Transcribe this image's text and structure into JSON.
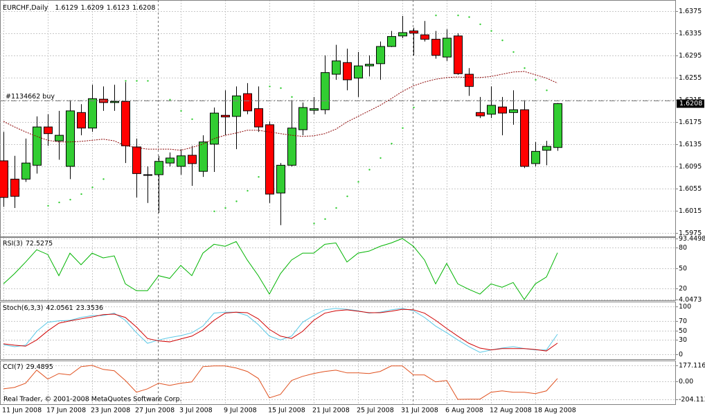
{
  "chart_data": [
    {
      "type": "candlestick",
      "title": "EURCHF,Daily",
      "categories": [
        "11 Jun 2008",
        null,
        null,
        null,
        "17 Jun 2008",
        null,
        null,
        null,
        "23 Jun 2008",
        null,
        null,
        null,
        "27 Jun 2008",
        null,
        null,
        null,
        "3 Jul 2008",
        null,
        null,
        null,
        "9 Jul 2008",
        null,
        null,
        null,
        "15 Jul 2008",
        null,
        null,
        null,
        "21 Jul 2008",
        null,
        null,
        null,
        "25 Jul 2008",
        null,
        null,
        null,
        "31 Jul 2008",
        null,
        null,
        null,
        "6 Aug 2008",
        null,
        null,
        null,
        "12 Aug 2008",
        null,
        null,
        null,
        "18 Aug 2008",
        null,
        null
      ],
      "open": [
        1.6105,
        1.6072,
        1.6072,
        1.6097,
        1.6166,
        1.6141,
        1.6095,
        1.6192,
        1.6164,
        1.6216,
        1.621,
        1.6212,
        1.613,
        1.608,
        1.608,
        1.6101,
        1.6095,
        1.6115,
        1.6086,
        1.6135,
        1.6187,
        1.6185,
        1.6226,
        1.6199,
        1.617,
        1.6047,
        1.6097,
        1.6161,
        1.6196,
        1.6197,
        1.6261,
        1.6282,
        1.6254,
        1.6276,
        1.628,
        1.6311,
        1.633,
        1.6339,
        1.6332,
        1.6324,
        1.6292,
        1.633,
        1.6261,
        1.6192,
        1.6189,
        1.6202,
        1.6192,
        1.6197,
        1.61,
        1.6124,
        1.6129
      ],
      "high": [
        1.6157,
        1.6114,
        1.6145,
        1.6185,
        1.6189,
        1.6195,
        1.6214,
        1.6207,
        1.6242,
        1.6239,
        1.6242,
        1.6247,
        1.6145,
        1.6095,
        1.6114,
        1.612,
        1.6126,
        1.6132,
        1.6151,
        1.6201,
        1.6232,
        1.6239,
        1.6245,
        1.6239,
        1.6176,
        1.6101,
        1.6214,
        1.621,
        1.622,
        1.6295,
        1.6314,
        1.6307,
        1.6301,
        1.6295,
        1.632,
        1.6339,
        1.6366,
        1.6345,
        1.6357,
        1.6339,
        1.6342,
        1.6335,
        1.6272,
        1.622,
        1.6239,
        1.622,
        1.6232,
        1.6214,
        1.6139,
        1.6141,
        1.6209
      ],
      "low": [
        1.6022,
        1.602,
        1.6067,
        1.6082,
        1.6132,
        1.6107,
        1.6072,
        1.6151,
        1.6157,
        1.6195,
        1.6195,
        1.6101,
        1.6039,
        1.6029,
        1.6011,
        1.6095,
        1.608,
        1.606,
        1.6076,
        1.6085,
        1.6151,
        1.6126,
        1.6189,
        1.6157,
        1.6029,
        1.5989,
        1.6095,
        1.6151,
        1.6189,
        1.6189,
        1.6251,
        1.6232,
        1.622,
        1.6257,
        1.6251,
        1.631,
        1.6326,
        1.6295,
        1.632,
        1.6289,
        1.6285,
        1.626,
        1.6222,
        1.6182,
        1.6182,
        1.6151,
        1.617,
        1.6092,
        1.6095,
        1.6097,
        1.6123
      ],
      "close": [
        1.6039,
        1.6041,
        1.6101,
        1.6166,
        1.6154,
        1.6151,
        1.6195,
        1.6164,
        1.6217,
        1.621,
        1.6212,
        1.6132,
        1.6082,
        1.608,
        1.6104,
        1.611,
        1.6114,
        1.61,
        1.6139,
        1.6191,
        1.6184,
        1.6222,
        1.6195,
        1.6166,
        1.6045,
        1.6097,
        1.6164,
        1.6201,
        1.6199,
        1.6264,
        1.6285,
        1.6251,
        1.6276,
        1.6279,
        1.6311,
        1.6329,
        1.6336,
        1.6335,
        1.6324,
        1.6295,
        1.6326,
        1.6262,
        1.6239,
        1.6186,
        1.6205,
        1.6191,
        1.6197,
        1.6095,
        1.6122,
        1.6131,
        1.6208
      ],
      "up_color": "#32cd32",
      "down_color": "#ff0000",
      "flat_color": "#000000",
      "moving_average": {
        "color": "#8b0000",
        "values": [
          1.6176,
          1.6166,
          1.6157,
          1.6149,
          1.6142,
          1.6139,
          1.6139,
          1.614,
          1.6142,
          1.6144,
          1.6141,
          1.6132,
          1.6129,
          1.6126,
          1.6126,
          1.6126,
          1.6124,
          1.6129,
          1.6135,
          1.6145,
          1.6151,
          1.6155,
          1.616,
          1.616,
          1.6157,
          1.6154,
          1.6151,
          1.6149,
          1.615,
          1.6154,
          1.6162,
          1.6175,
          1.6185,
          1.6195,
          1.6205,
          1.6217,
          1.623,
          1.624,
          1.6247,
          1.6252,
          1.6255,
          1.6256,
          1.6255,
          1.6255,
          1.6257,
          1.6261,
          1.6265,
          1.6266,
          1.626,
          1.6254,
          1.6245
        ]
      },
      "sar": {
        "color": "#32cd32",
        "values": [
          null,
          null,
          null,
          null,
          1.6024,
          1.603,
          1.6035,
          1.6045,
          1.6057,
          1.6072,
          null,
          1.6249,
          1.6249,
          1.6249,
          null,
          1.6215,
          1.6195,
          1.618,
          null,
          1.6014,
          1.602,
          1.6032,
          1.6051,
          1.6076,
          1.6239,
          1.6236,
          1.622,
          null,
          1.5992,
          1.6,
          1.602,
          1.6041,
          1.6067,
          1.6089,
          1.611,
          1.6136,
          1.6164,
          1.6201,
          null,
          1.6367,
          null,
          1.6367,
          1.6364,
          1.6351,
          1.6339,
          1.6322,
          1.6301,
          1.6272,
          1.6251,
          1.6232,
          null
        ]
      },
      "order": {
        "label": "#1134662 buy",
        "value": 1.6214
      },
      "ylim": [
        1.597,
        1.6391
      ],
      "yticks": [
        1.6375,
        1.6335,
        1.6295,
        1.6255,
        1.6215,
        1.6175,
        1.6135,
        1.6095,
        1.6055,
        1.6015,
        1.5975
      ],
      "grid": true
    },
    {
      "type": "line",
      "title": "RSI(3)",
      "series": [
        {
          "color": "#00b400",
          "values": [
            27,
            42,
            59,
            77,
            70,
            39,
            72,
            55,
            72,
            65,
            68,
            27,
            17,
            17,
            39,
            35,
            54,
            39,
            72,
            85,
            82,
            89,
            62,
            39,
            12,
            42,
            62,
            72,
            72,
            85,
            87,
            59,
            72,
            75,
            82,
            87,
            93.4498,
            82,
            62,
            27,
            57,
            27,
            19,
            12,
            27,
            22,
            29,
            4.0473,
            27,
            37,
            72.5275
          ]
        }
      ],
      "ylim": [
        4.0473,
        93.4498
      ],
      "yticks": [
        93.4498,
        80,
        50,
        20,
        4.0473
      ],
      "grid": true
    },
    {
      "type": "line",
      "title": "Stoch(6,3,3)",
      "series": [
        {
          "color": "#5ac8e6",
          "values": [
            20,
            16,
            19,
            48,
            67,
            70,
            71,
            77,
            81,
            81,
            86,
            71,
            45,
            23,
            30,
            35,
            39,
            45,
            59,
            86,
            88,
            88,
            81,
            62,
            38,
            30,
            38,
            67,
            81,
            93,
            96,
            94,
            91,
            86,
            88,
            93,
            96,
            91,
            77,
            59,
            45,
            30,
            16,
            4,
            9,
            13,
            16,
            12,
            9,
            9,
            42.0561
          ]
        },
        {
          "color": "#d00000",
          "values": [
            22,
            19,
            17,
            30,
            49,
            65,
            70,
            74,
            78,
            83,
            84,
            77,
            57,
            33,
            28,
            26,
            32,
            38,
            51,
            71,
            86,
            88,
            87,
            74,
            52,
            38,
            33,
            48,
            71,
            86,
            91,
            93,
            90,
            87,
            87,
            90,
            94,
            93,
            86,
            71,
            54,
            38,
            23,
            13,
            9,
            12,
            12,
            12,
            10,
            7,
            23.3536
          ]
        }
      ],
      "ylim": [
        0,
        100
      ],
      "yticks": [
        100,
        70,
        50,
        30,
        0
      ],
      "grid": true
    },
    {
      "type": "line",
      "title": "CCI(7)",
      "series": [
        {
          "color": "#e0501e",
          "values": [
            -86,
            -70,
            -23,
            124,
            23,
            86,
            70,
            163,
            177.1163,
            132,
            117,
            8,
            -124,
            -86,
            -23,
            -47,
            -23,
            -8,
            163,
            171,
            171,
            148,
            109,
            31,
            -187,
            -148,
            8,
            54,
            86,
            109,
            124,
            93,
            93,
            86,
            109,
            171,
            171,
            70,
            70,
            -8,
            8,
            -204.1137,
            -202,
            -202,
            -124,
            -109,
            -124,
            -124,
            -140,
            -109,
            29.4895
          ]
        }
      ],
      "ylim": [
        -204.1137,
        177.1163
      ],
      "yticks": [
        177.1163,
        {
          "value": 0,
          "label": "0.00"
        },
        -204.1137
      ],
      "grid": true
    }
  ],
  "footer": "Real Trader, © 2001-2008 MetaQuotes Software Corp."
}
